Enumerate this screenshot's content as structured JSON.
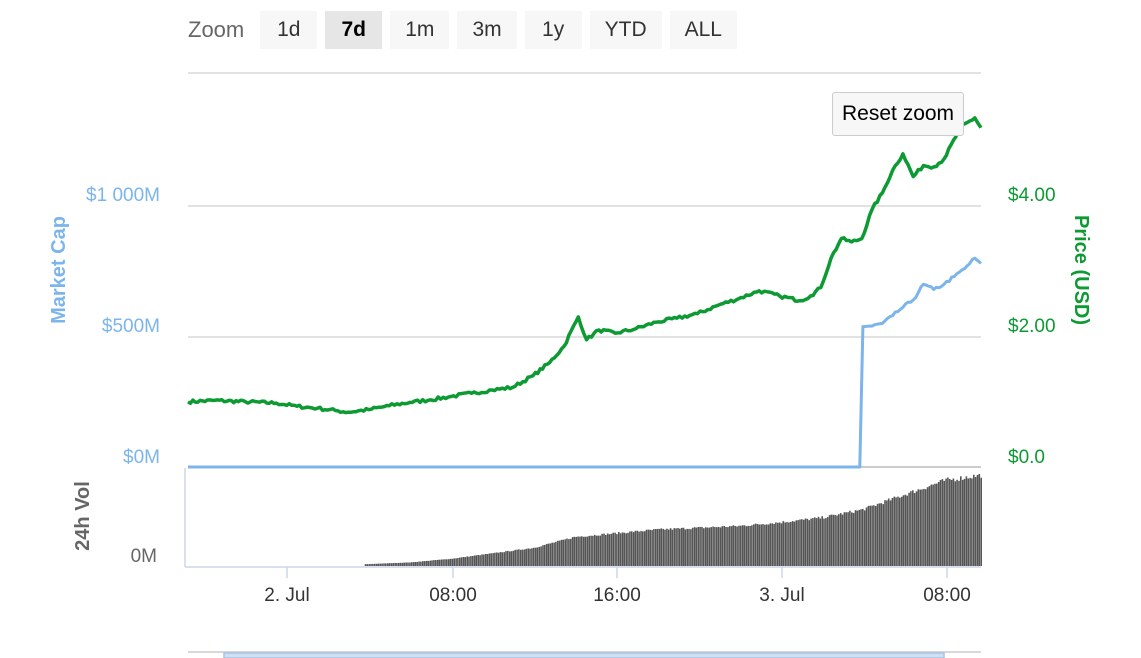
{
  "zoom": {
    "label": "Zoom",
    "buttons": [
      {
        "label": "1d",
        "active": false
      },
      {
        "label": "7d",
        "active": true
      },
      {
        "label": "1m",
        "active": false
      },
      {
        "label": "3m",
        "active": false
      },
      {
        "label": "1y",
        "active": false
      },
      {
        "label": "YTD",
        "active": false
      },
      {
        "label": "ALL",
        "active": false
      }
    ]
  },
  "reset_zoom_label": "Reset zoom",
  "colors": {
    "market_cap": "#7cb5ec",
    "price": "#0d9a33",
    "volume": "#666666",
    "grid": "#d8d8d8"
  },
  "chart_data": {
    "type": "line",
    "x_labels": [
      "2. Jul",
      "08:00",
      "16:00",
      "3. Jul",
      "08:00"
    ],
    "x_range_hours": [
      -4.8,
      33.8
    ],
    "market_cap_axis": {
      "title": "Market Cap",
      "ticks": [
        "$0M",
        "$500M",
        "$1 000M"
      ],
      "ylim": [
        0,
        1000
      ]
    },
    "price_axis": {
      "title": "Price (USD)",
      "ticks": [
        "$0.0",
        "$2.00",
        "$4.00"
      ],
      "ylim": [
        0,
        4
      ]
    },
    "volume_axis": {
      "title": "24h Vol",
      "ticks": [
        "0M"
      ]
    },
    "series": [
      {
        "name": "Price (USD)",
        "axis": "price",
        "points": [
          [
            -4.8,
            1.0
          ],
          [
            -3.5,
            1.02
          ],
          [
            -2,
            1.0
          ],
          [
            -0.5,
            0.98
          ],
          [
            0.5,
            0.93
          ],
          [
            1.5,
            0.9
          ],
          [
            2.5,
            0.86
          ],
          [
            3,
            0.84
          ],
          [
            4,
            0.88
          ],
          [
            5,
            0.94
          ],
          [
            6,
            0.99
          ],
          [
            7,
            1.03
          ],
          [
            8,
            1.08
          ],
          [
            9,
            1.13
          ],
          [
            10,
            1.18
          ],
          [
            11,
            1.22
          ],
          [
            12,
            1.4
          ],
          [
            12.8,
            1.6
          ],
          [
            13.5,
            1.85
          ],
          [
            14.2,
            2.3
          ],
          [
            14.6,
            1.95
          ],
          [
            15.2,
            2.1
          ],
          [
            16,
            2.05
          ],
          [
            17,
            2.12
          ],
          [
            18,
            2.22
          ],
          [
            19,
            2.28
          ],
          [
            20,
            2.35
          ],
          [
            21,
            2.48
          ],
          [
            22,
            2.58
          ],
          [
            23,
            2.7
          ],
          [
            24,
            2.62
          ],
          [
            25,
            2.55
          ],
          [
            25.5,
            2.62
          ],
          [
            26,
            2.75
          ],
          [
            26.5,
            3.2
          ],
          [
            27,
            3.5
          ],
          [
            27.5,
            3.45
          ],
          [
            28,
            3.5
          ],
          [
            28.5,
            3.95
          ],
          [
            29,
            4.2
          ],
          [
            29.5,
            4.55
          ],
          [
            30,
            4.8
          ],
          [
            30.5,
            4.45
          ],
          [
            31,
            4.62
          ],
          [
            31.5,
            4.6
          ],
          [
            32,
            4.72
          ],
          [
            32.8,
            5.2
          ],
          [
            33.5,
            5.35
          ],
          [
            33.8,
            5.2
          ]
        ]
      },
      {
        "name": "Market Cap",
        "axis": "market_cap",
        "points": [
          [
            -4.8,
            0
          ],
          [
            27.9,
            0
          ],
          [
            28.05,
            538
          ],
          [
            28.5,
            540
          ],
          [
            29,
            550
          ],
          [
            29.5,
            580
          ],
          [
            30,
            612
          ],
          [
            30.5,
            640
          ],
          [
            31,
            700
          ],
          [
            31.5,
            680
          ],
          [
            32,
            700
          ],
          [
            32.5,
            730
          ],
          [
            33,
            760
          ],
          [
            33.5,
            800
          ],
          [
            33.8,
            780
          ]
        ]
      },
      {
        "name": "24h Vol",
        "axis": "volume",
        "type": "bar",
        "points": [
          [
            3.8,
            0.02
          ],
          [
            6,
            0.04
          ],
          [
            8,
            0.08
          ],
          [
            10,
            0.14
          ],
          [
            12,
            0.2
          ],
          [
            14,
            0.32
          ],
          [
            16,
            0.36
          ],
          [
            18,
            0.4
          ],
          [
            20,
            0.42
          ],
          [
            22,
            0.44
          ],
          [
            24,
            0.48
          ],
          [
            26,
            0.53
          ],
          [
            28,
            0.62
          ],
          [
            29,
            0.7
          ],
          [
            30,
            0.78
          ],
          [
            31,
            0.86
          ],
          [
            32,
            0.94
          ],
          [
            33.8,
            1.0
          ]
        ]
      }
    ]
  }
}
